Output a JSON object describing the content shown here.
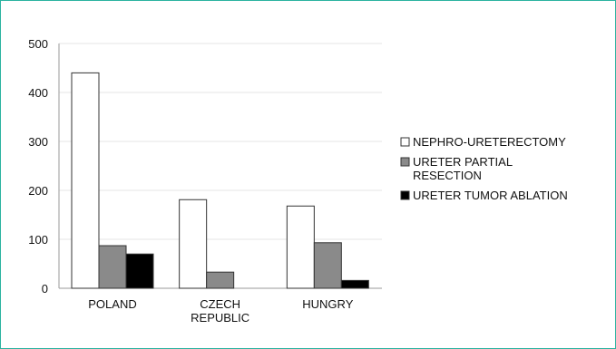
{
  "chart_data": {
    "type": "bar",
    "categories": [
      [
        "POLAND"
      ],
      [
        "CZECH",
        "REPUBLIC"
      ],
      [
        "HUNGRY"
      ]
    ],
    "series": [
      {
        "name": "NEPHRO-URETERECTOMY",
        "color": "#ffffff",
        "values": [
          440,
          181,
          168
        ]
      },
      {
        "name": "URETER PARTIAL RESECTION",
        "legend_lines": [
          "URETER PARTIAL",
          "RESECTION"
        ],
        "color": "#8a8a8a",
        "values": [
          87,
          33,
          93
        ]
      },
      {
        "name": "URETER TUMOR ABLATION",
        "legend_lines": [
          "URETER TUMOR ABLATION"
        ],
        "color": "#000000",
        "values": [
          70,
          0,
          16
        ]
      }
    ],
    "ylim": [
      0,
      500
    ],
    "yticks": [
      0,
      100,
      200,
      300,
      400,
      500
    ],
    "grid": true,
    "legend_position": "right"
  }
}
